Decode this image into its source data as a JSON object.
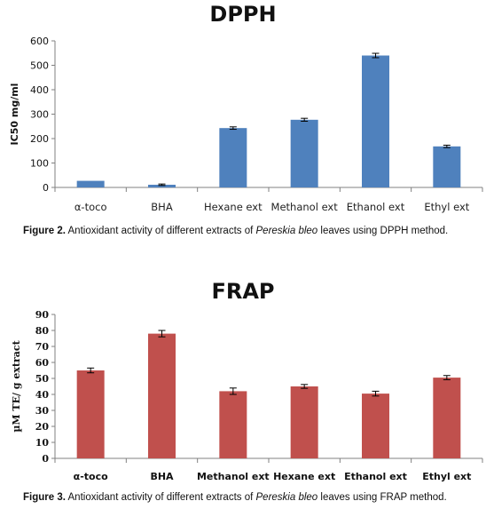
{
  "chart_data": [
    {
      "id": "dpph",
      "type": "bar",
      "title": "DPPH",
      "ylabel": "IC50 mg/ml",
      "xlabel": "",
      "categories": [
        "α-toco",
        "BHA",
        "Hexane ext",
        "Methanol ext",
        "Ethanol ext",
        "Ethyl ext"
      ],
      "values": [
        27,
        11,
        243,
        277,
        540,
        168
      ],
      "errors": [
        0,
        3,
        5,
        6,
        9,
        5
      ],
      "ylim": [
        0,
        600
      ],
      "yticks": [
        "0",
        "100",
        "200",
        "300",
        "400",
        "500",
        "600"
      ],
      "bar_color": "#4f81bd",
      "grid": false,
      "legend": "none"
    },
    {
      "id": "frap",
      "type": "bar",
      "title": "FRAP",
      "ylabel": "µM TE/ g extract",
      "xlabel": "",
      "categories": [
        "α-toco",
        "BHA",
        "Methanol ext",
        "Hexane ext",
        "Ethanol ext",
        "Ethyl ext"
      ],
      "values": [
        55,
        78,
        42,
        45,
        40.5,
        50.5
      ],
      "errors": [
        1.5,
        2,
        2,
        1.2,
        1.5,
        1.3
      ],
      "ylim": [
        0,
        90
      ],
      "yticks": [
        "0",
        "10",
        "20",
        "30",
        "40",
        "50",
        "60",
        "70",
        "80",
        "90"
      ],
      "bar_color": "#c0504d",
      "grid": false,
      "legend": "none"
    }
  ],
  "captions": {
    "dpph": {
      "fig": "Figure 2.",
      "pre": " Antioxidant activity of different extracts of ",
      "species": "Pereskia bleo",
      "post": " leaves using DPPH method."
    },
    "frap": {
      "fig": "Figure 3.",
      "pre": " Antioxidant activity of different extracts of ",
      "species": "Pereskia bleo",
      "post": " leaves using FRAP method."
    }
  }
}
